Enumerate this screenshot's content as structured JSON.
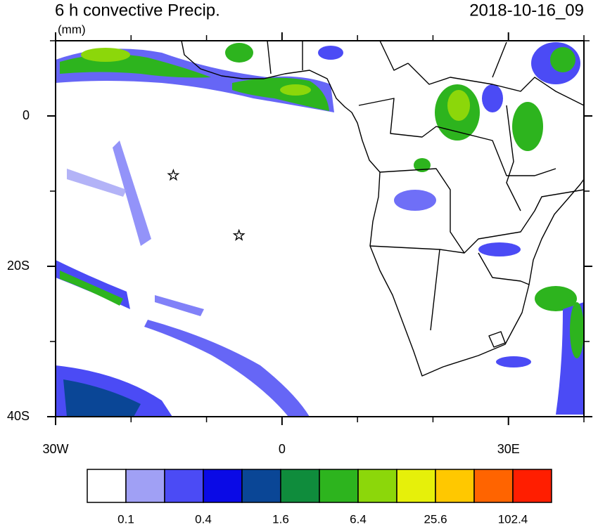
{
  "header": {
    "title": "6 h convective Precip.",
    "unit": "(mm)",
    "date": "2018-10-16_09"
  },
  "map": {
    "xlim": [
      -30,
      40
    ],
    "ylim": [
      -40,
      10
    ],
    "xticks": [
      {
        "value": -30,
        "label": "30W"
      },
      {
        "value": 0,
        "label": "0"
      },
      {
        "value": 30,
        "label": "30E"
      }
    ],
    "xminor": [
      -20,
      -10,
      10,
      20,
      40
    ],
    "yticks": [
      {
        "value": 0,
        "label": "0"
      },
      {
        "value": -20,
        "label": "20S"
      },
      {
        "value": -40,
        "label": "40S"
      }
    ],
    "yminor": [
      10,
      -10,
      -30
    ],
    "markers": [
      {
        "lon": -14.4,
        "lat": -7.9
      },
      {
        "lon": -5.7,
        "lat": -15.9
      }
    ]
  },
  "colorbar": {
    "colors": [
      "#ffffff",
      "#a0a0f5",
      "#4b4bf5",
      "#0a0ae6",
      "#0a4696",
      "#0f8c3c",
      "#2db41e",
      "#8cd70a",
      "#e6f00a",
      "#ffc800",
      "#ff6400",
      "#ff1e00"
    ],
    "labels": [
      0.1,
      0.4,
      1.6,
      6.4,
      25.6,
      102.4
    ]
  }
}
